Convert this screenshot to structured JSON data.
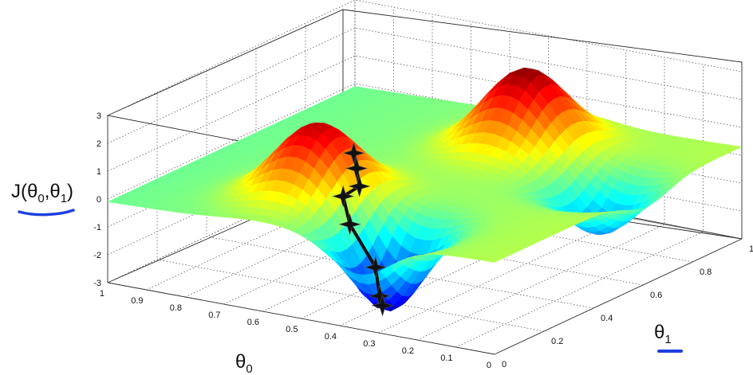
{
  "chart_data": {
    "type": "surface",
    "title": "",
    "zlabel": {
      "base": "J(θ",
      "sub0": "0",
      "sep": ",θ",
      "sub1": "1",
      "close": ")"
    },
    "xlabel": {
      "base": "θ",
      "sub": "0"
    },
    "ylabel": {
      "base": "θ",
      "sub": "1"
    },
    "xlim": [
      0,
      1
    ],
    "ylim": [
      0,
      1
    ],
    "zlim": [
      -3,
      3
    ],
    "z_ticks": [
      "3",
      "2",
      "1",
      "0",
      "-1",
      "-2",
      "-3"
    ],
    "x_ticks": [
      "1",
      "0.9",
      "0.8",
      "0.7",
      "0.6",
      "0.5",
      "0.4",
      "0.3",
      "0.2",
      "0.1",
      "0"
    ],
    "y_ticks": [
      "0",
      "0.2",
      "0.4",
      "0.6",
      "0.8",
      "1"
    ],
    "surface_features": [
      {
        "kind": "peak",
        "theta0": 0.62,
        "theta1": 0.25,
        "z": 2.6
      },
      {
        "kind": "peak",
        "theta0": 0.42,
        "theta1": 0.78,
        "z": 2.8
      },
      {
        "kind": "valley",
        "theta0": 0.35,
        "theta1": 0.12,
        "z": -3.0
      },
      {
        "kind": "valley",
        "theta0": 0.12,
        "theta1": 0.62,
        "z": -1.8
      }
    ],
    "descent_path": [
      {
        "theta0": 0.53,
        "theta1": 0.26
      },
      {
        "theta0": 0.51,
        "theta1": 0.24
      },
      {
        "theta0": 0.49,
        "theta1": 0.22
      },
      {
        "theta0": 0.5,
        "theta1": 0.17
      },
      {
        "theta0": 0.47,
        "theta1": 0.15
      },
      {
        "theta0": 0.41,
        "theta1": 0.16
      },
      {
        "theta0": 0.38,
        "theta1": 0.13
      },
      {
        "theta0": 0.36,
        "theta1": 0.11
      }
    ],
    "colormap": "jet",
    "grid": true
  },
  "colors": {
    "underline": "#1f3fe0",
    "path": "#111111"
  }
}
